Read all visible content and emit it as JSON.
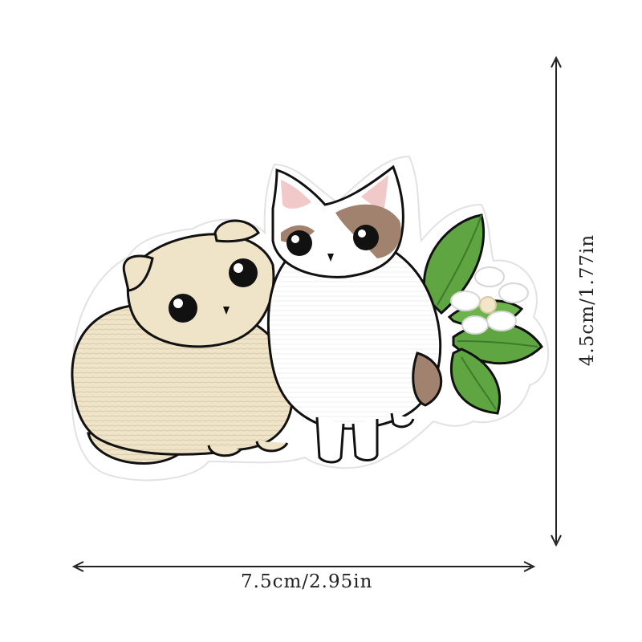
{
  "product_image": {
    "subject_icon": "embroidered-cat-patch-icon",
    "colors": {
      "cream_cat": "#efe3c8",
      "calico_brown": "#a0826f",
      "leaf_green": "#5fa642",
      "outline": "#111111",
      "background": "#ffffff"
    }
  },
  "dimensions": {
    "width_label": "7.5cm/2.95in",
    "height_label": "4.5cm/1.77in"
  }
}
